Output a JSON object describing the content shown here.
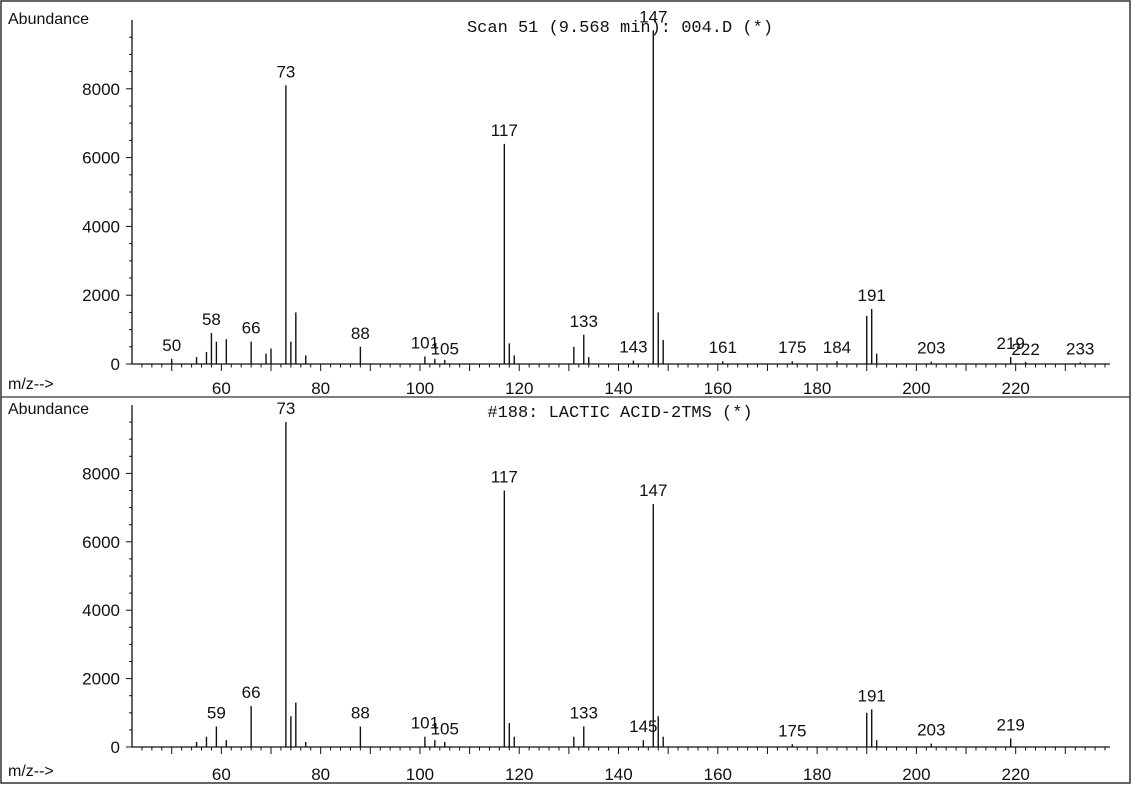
{
  "chart_data": [
    {
      "type": "bar",
      "title": "Scan 51 (9.568 min): 004.D (*)",
      "ylabel": "Abundance",
      "xlabel": "m/z-->",
      "xlim": [
        42,
        239
      ],
      "ylim": [
        0,
        10000
      ],
      "yticks": [
        0,
        2000,
        4000,
        6000,
        8000
      ],
      "xticks": [
        60,
        80,
        100,
        120,
        140,
        160,
        180,
        200,
        220
      ],
      "peaks": [
        {
          "x": 50,
          "y": 150
        },
        {
          "x": 55,
          "y": 200
        },
        {
          "x": 57,
          "y": 350
        },
        {
          "x": 58,
          "y": 900
        },
        {
          "x": 59,
          "y": 650
        },
        {
          "x": 61,
          "y": 720
        },
        {
          "x": 66,
          "y": 650
        },
        {
          "x": 69,
          "y": 300
        },
        {
          "x": 70,
          "y": 450
        },
        {
          "x": 73,
          "y": 8100
        },
        {
          "x": 74,
          "y": 650
        },
        {
          "x": 75,
          "y": 1500
        },
        {
          "x": 77,
          "y": 250
        },
        {
          "x": 88,
          "y": 500
        },
        {
          "x": 101,
          "y": 220
        },
        {
          "x": 103,
          "y": 150
        },
        {
          "x": 105,
          "y": 120
        },
        {
          "x": 117,
          "y": 6400
        },
        {
          "x": 118,
          "y": 600
        },
        {
          "x": 119,
          "y": 250
        },
        {
          "x": 131,
          "y": 500
        },
        {
          "x": 133,
          "y": 850
        },
        {
          "x": 134,
          "y": 200
        },
        {
          "x": 143,
          "y": 100
        },
        {
          "x": 147,
          "y": 9700
        },
        {
          "x": 148,
          "y": 1500
        },
        {
          "x": 149,
          "y": 700
        },
        {
          "x": 161,
          "y": 80
        },
        {
          "x": 175,
          "y": 80
        },
        {
          "x": 184,
          "y": 80
        },
        {
          "x": 190,
          "y": 1400
        },
        {
          "x": 191,
          "y": 1600
        },
        {
          "x": 192,
          "y": 300
        },
        {
          "x": 203,
          "y": 70
        },
        {
          "x": 219,
          "y": 200
        },
        {
          "x": 222,
          "y": 60
        },
        {
          "x": 233,
          "y": 50
        }
      ],
      "labels": [
        {
          "x": 50,
          "text": "50"
        },
        {
          "x": 58,
          "text": "58"
        },
        {
          "x": 66,
          "text": "66"
        },
        {
          "x": 73,
          "text": "73"
        },
        {
          "x": 88,
          "text": "88"
        },
        {
          "x": 101,
          "text": "101"
        },
        {
          "x": 105,
          "text": "105"
        },
        {
          "x": 117,
          "text": "117"
        },
        {
          "x": 133,
          "text": "133"
        },
        {
          "x": 143,
          "text": "143"
        },
        {
          "x": 147,
          "text": "147"
        },
        {
          "x": 161,
          "text": "161"
        },
        {
          "x": 175,
          "text": "175"
        },
        {
          "x": 184,
          "text": "184"
        },
        {
          "x": 191,
          "text": "191"
        },
        {
          "x": 203,
          "text": "203"
        },
        {
          "x": 219,
          "text": "219"
        },
        {
          "x": 222,
          "text": "222"
        },
        {
          "x": 233,
          "text": "233"
        }
      ]
    },
    {
      "type": "bar",
      "title": "#188: LACTIC ACID-2TMS (*)",
      "ylabel": "Abundance",
      "xlabel": "m/z-->",
      "xlim": [
        42,
        239
      ],
      "ylim": [
        0,
        10000
      ],
      "yticks": [
        0,
        2000,
        4000,
        6000,
        8000
      ],
      "xticks": [
        60,
        80,
        100,
        120,
        140,
        160,
        180,
        200,
        220
      ],
      "peaks": [
        {
          "x": 55,
          "y": 150
        },
        {
          "x": 57,
          "y": 300
        },
        {
          "x": 59,
          "y": 600
        },
        {
          "x": 61,
          "y": 200
        },
        {
          "x": 66,
          "y": 1200
        },
        {
          "x": 73,
          "y": 9500
        },
        {
          "x": 74,
          "y": 900
        },
        {
          "x": 75,
          "y": 1300
        },
        {
          "x": 77,
          "y": 150
        },
        {
          "x": 88,
          "y": 600
        },
        {
          "x": 101,
          "y": 300
        },
        {
          "x": 103,
          "y": 200
        },
        {
          "x": 105,
          "y": 150
        },
        {
          "x": 117,
          "y": 7500
        },
        {
          "x": 118,
          "y": 700
        },
        {
          "x": 119,
          "y": 300
        },
        {
          "x": 131,
          "y": 300
        },
        {
          "x": 133,
          "y": 600
        },
        {
          "x": 145,
          "y": 200
        },
        {
          "x": 147,
          "y": 7100
        },
        {
          "x": 148,
          "y": 900
        },
        {
          "x": 149,
          "y": 300
        },
        {
          "x": 175,
          "y": 80
        },
        {
          "x": 190,
          "y": 1000
        },
        {
          "x": 191,
          "y": 1100
        },
        {
          "x": 192,
          "y": 200
        },
        {
          "x": 203,
          "y": 100
        },
        {
          "x": 219,
          "y": 250
        }
      ],
      "labels": [
        {
          "x": 59,
          "text": "59"
        },
        {
          "x": 66,
          "text": "66"
        },
        {
          "x": 73,
          "text": "73"
        },
        {
          "x": 88,
          "text": "88"
        },
        {
          "x": 101,
          "text": "101"
        },
        {
          "x": 105,
          "text": "105"
        },
        {
          "x": 117,
          "text": "117"
        },
        {
          "x": 133,
          "text": "133"
        },
        {
          "x": 145,
          "text": "145"
        },
        {
          "x": 147,
          "text": "147"
        },
        {
          "x": 175,
          "text": "175"
        },
        {
          "x": 191,
          "text": "191"
        },
        {
          "x": 203,
          "text": "203"
        },
        {
          "x": 219,
          "text": "219"
        }
      ]
    }
  ]
}
